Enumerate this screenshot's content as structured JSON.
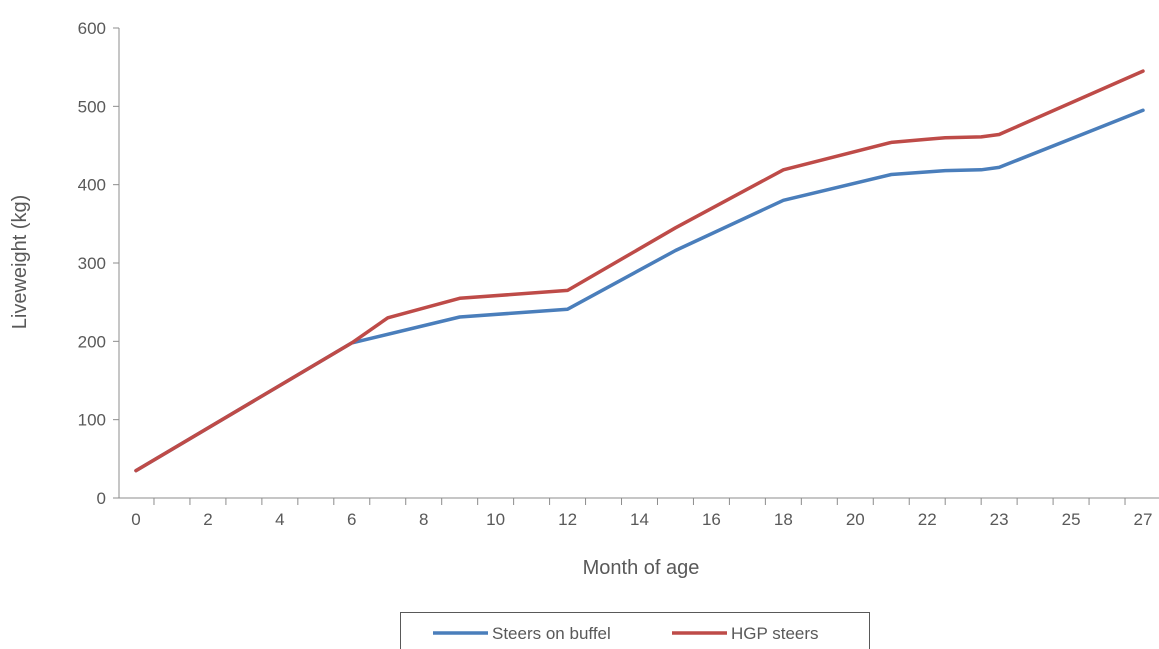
{
  "chart_data": {
    "type": "line",
    "x_tick_labels": [
      "0",
      "",
      "2",
      "",
      "4",
      "",
      "6",
      "",
      "8",
      "",
      "10",
      "",
      "12",
      "",
      "14",
      "",
      "16",
      "",
      "18",
      "",
      "20",
      "",
      "22",
      "",
      "23",
      "",
      "25",
      "",
      "27"
    ],
    "xlabel": "Month of age",
    "ylabel": "Liveweight (kg)",
    "ylim": [
      0,
      600
    ],
    "yticks": [
      0,
      100,
      200,
      300,
      400,
      500,
      600
    ],
    "grid": false,
    "legend_position": "bottom",
    "series": [
      {
        "name": "Steers on buffel",
        "color": "#4a7ebb",
        "points": [
          [
            0,
            35
          ],
          [
            6,
            198
          ],
          [
            9,
            231
          ],
          [
            12,
            241
          ],
          [
            15,
            316
          ],
          [
            18,
            380
          ],
          [
            21,
            413
          ],
          [
            22.5,
            418
          ],
          [
            23.5,
            419
          ],
          [
            24,
            422
          ],
          [
            28,
            495
          ]
        ]
      },
      {
        "name": "HGP steers",
        "color": "#be4b48",
        "points": [
          [
            0,
            35
          ],
          [
            6,
            198
          ],
          [
            7,
            230
          ],
          [
            9,
            255
          ],
          [
            12,
            265
          ],
          [
            15,
            345
          ],
          [
            18,
            419
          ],
          [
            21,
            454
          ],
          [
            22,
            458
          ],
          [
            22.5,
            460
          ],
          [
            23.5,
            461
          ],
          [
            24,
            464
          ],
          [
            28,
            545
          ]
        ]
      }
    ]
  }
}
